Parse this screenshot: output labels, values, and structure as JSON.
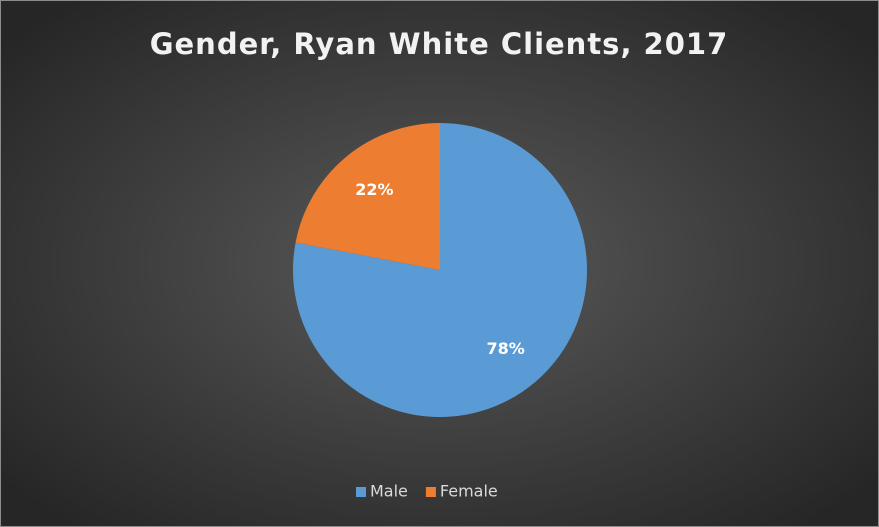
{
  "chart_data": {
    "type": "pie",
    "title": "Gender, Ryan White Clients, 2017",
    "categories": [
      "Male",
      "Female"
    ],
    "values": [
      78,
      22
    ],
    "value_labels": [
      "78%",
      "22%"
    ],
    "colors": [
      "#5b9bd5",
      "#ed7d31"
    ],
    "legend": "bottom"
  }
}
